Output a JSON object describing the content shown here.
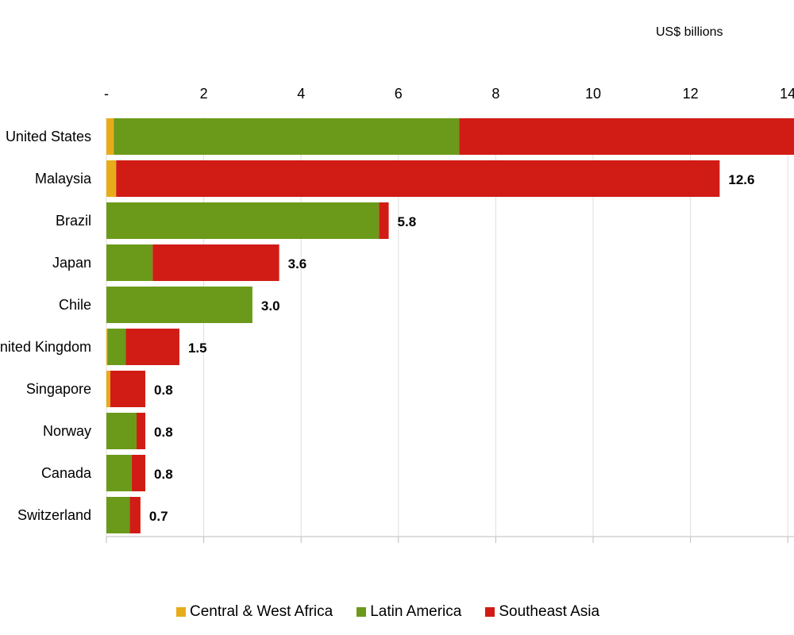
{
  "chart_data": {
    "type": "bar",
    "orientation": "horizontal",
    "stacked": true,
    "unit_label": "US$ billions",
    "x_axis_position": "top",
    "xlim": [
      0,
      14
    ],
    "x_ticks": [
      "-",
      "2",
      "4",
      "6",
      "8",
      "10",
      "12",
      "14"
    ],
    "grid": true,
    "legend_position": "bottom",
    "categories": [
      "United States",
      "Malaysia",
      "Brazil",
      "Japan",
      "Chile",
      "United Kingdom",
      "Singapore",
      "Norway",
      "Canada",
      "Switzerland"
    ],
    "series": [
      {
        "name": "Central & West Africa",
        "color": "#e8ac1a",
        "values": [
          0.15,
          0.2,
          0,
          0,
          0,
          0.02,
          0.08,
          0,
          0,
          0
        ]
      },
      {
        "name": "Latin America",
        "color": "#6b9a1a",
        "values": [
          7.1,
          0,
          5.6,
          0.95,
          3.0,
          0.38,
          0,
          0.62,
          0.52,
          0.48
        ]
      },
      {
        "name": "Southeast Asia",
        "color": "#d11c16",
        "values": [
          7.05,
          12.4,
          0.2,
          2.6,
          0,
          1.1,
          0.72,
          0.18,
          0.28,
          0.22
        ]
      }
    ],
    "totals": [
      "",
      "12.6",
      "5.8",
      "3.6",
      "3.0",
      "1.5",
      "0.8",
      "0.8",
      "0.8",
      "0.7"
    ]
  }
}
